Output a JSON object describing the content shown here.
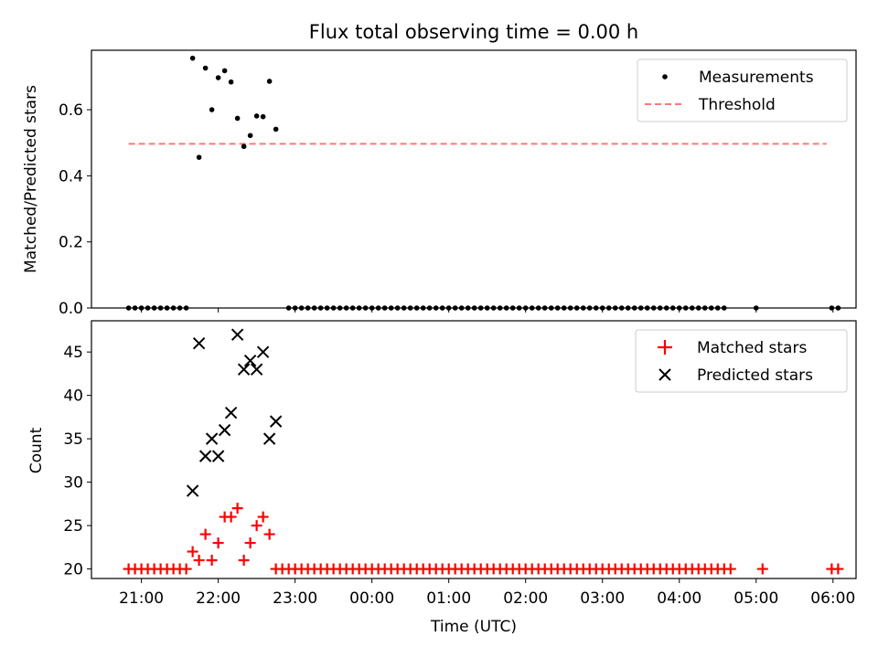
{
  "title": "Flux total observing time = 0.00 h",
  "xlabel": "Time (UTC)",
  "x_ticks": [
    "21:00",
    "22:00",
    "23:00",
    "00:00",
    "01:00",
    "02:00",
    "03:00",
    "04:00",
    "05:00",
    "06:00"
  ],
  "chart_data": [
    {
      "type": "scatter",
      "ylabel": "Matched/Predicted stars",
      "ylim": [
        0,
        0.78
      ],
      "y_ticks": [
        "0.0",
        "0.2",
        "0.4",
        "0.6"
      ],
      "y_tick_values": [
        0,
        0.2,
        0.4,
        0.6
      ],
      "legend_position": "top-right",
      "legend": [
        "Measurements",
        "Threshold"
      ],
      "threshold": {
        "name": "Threshold",
        "value": 0.497,
        "x_range": [
          "20:50",
          "05:55"
        ],
        "color": "#ff7777",
        "style": "dashed"
      },
      "series": [
        {
          "name": "Measurements",
          "color": "#000000",
          "points": [
            [
              "20:50",
              0
            ],
            [
              "20:55",
              0
            ],
            [
              "21:00",
              0
            ],
            [
              "21:05",
              0
            ],
            [
              "21:10",
              0
            ],
            [
              "21:15",
              0
            ],
            [
              "21:20",
              0
            ],
            [
              "21:25",
              0
            ],
            [
              "21:30",
              0
            ],
            [
              "21:35",
              0
            ],
            [
              "21:40",
              0.756
            ],
            [
              "21:45",
              0.456
            ],
            [
              "21:50",
              0.726
            ],
            [
              "21:55",
              0.6
            ],
            [
              "22:00",
              0.697
            ],
            [
              "22:05",
              0.718
            ],
            [
              "22:10",
              0.684
            ],
            [
              "22:15",
              0.574
            ],
            [
              "22:20",
              0.489
            ],
            [
              "22:25",
              0.522
            ],
            [
              "22:30",
              0.581
            ],
            [
              "22:35",
              0.579
            ],
            [
              "22:40",
              0.686
            ],
            [
              "22:45",
              0.541
            ],
            [
              "22:55",
              0
            ],
            [
              "23:00",
              0
            ],
            [
              "23:05",
              0
            ],
            [
              "23:10",
              0
            ],
            [
              "23:15",
              0
            ],
            [
              "23:20",
              0
            ],
            [
              "23:25",
              0
            ],
            [
              "23:30",
              0
            ],
            [
              "23:35",
              0
            ],
            [
              "23:40",
              0
            ],
            [
              "23:45",
              0
            ],
            [
              "23:50",
              0
            ],
            [
              "23:55",
              0
            ],
            [
              "00:00",
              0
            ],
            [
              "00:05",
              0
            ],
            [
              "00:10",
              0
            ],
            [
              "00:15",
              0
            ],
            [
              "00:20",
              0
            ],
            [
              "00:25",
              0
            ],
            [
              "00:30",
              0
            ],
            [
              "00:35",
              0
            ],
            [
              "00:40",
              0
            ],
            [
              "00:45",
              0
            ],
            [
              "00:50",
              0
            ],
            [
              "00:55",
              0
            ],
            [
              "01:00",
              0
            ],
            [
              "01:05",
              0
            ],
            [
              "01:10",
              0
            ],
            [
              "01:15",
              0
            ],
            [
              "01:20",
              0
            ],
            [
              "01:25",
              0
            ],
            [
              "01:30",
              0
            ],
            [
              "01:35",
              0
            ],
            [
              "01:40",
              0
            ],
            [
              "01:45",
              0
            ],
            [
              "01:50",
              0
            ],
            [
              "01:55",
              0
            ],
            [
              "02:00",
              0
            ],
            [
              "02:05",
              0
            ],
            [
              "02:10",
              0
            ],
            [
              "02:15",
              0
            ],
            [
              "02:20",
              0
            ],
            [
              "02:25",
              0
            ],
            [
              "02:30",
              0
            ],
            [
              "02:35",
              0
            ],
            [
              "02:40",
              0
            ],
            [
              "02:45",
              0
            ],
            [
              "02:50",
              0
            ],
            [
              "02:55",
              0
            ],
            [
              "03:00",
              0
            ],
            [
              "03:05",
              0
            ],
            [
              "03:10",
              0
            ],
            [
              "03:15",
              0
            ],
            [
              "03:20",
              0
            ],
            [
              "03:25",
              0
            ],
            [
              "03:30",
              0
            ],
            [
              "03:35",
              0
            ],
            [
              "03:40",
              0
            ],
            [
              "03:45",
              0
            ],
            [
              "03:50",
              0
            ],
            [
              "03:55",
              0
            ],
            [
              "04:00",
              0
            ],
            [
              "04:05",
              0
            ],
            [
              "04:10",
              0
            ],
            [
              "04:15",
              0
            ],
            [
              "04:20",
              0
            ],
            [
              "04:25",
              0
            ],
            [
              "04:30",
              0
            ],
            [
              "04:35",
              0
            ],
            [
              "05:00",
              0
            ],
            [
              "05:59",
              0
            ],
            [
              "06:04",
              0
            ]
          ]
        }
      ]
    },
    {
      "type": "scatter",
      "ylabel": "Count",
      "ylim": [
        18.9,
        48.6
      ],
      "y_ticks": [
        "20",
        "25",
        "30",
        "35",
        "40",
        "45"
      ],
      "y_tick_values": [
        20,
        25,
        30,
        35,
        40,
        45
      ],
      "legend_position": "top-right",
      "legend": [
        "Matched stars",
        "Predicted stars"
      ],
      "series": [
        {
          "name": "Matched stars",
          "marker": "plus",
          "color": "#ff0000",
          "points": [
            [
              "20:50",
              20
            ],
            [
              "20:55",
              20
            ],
            [
              "21:00",
              20
            ],
            [
              "21:05",
              20
            ],
            [
              "21:10",
              20
            ],
            [
              "21:15",
              20
            ],
            [
              "21:20",
              20
            ],
            [
              "21:25",
              20
            ],
            [
              "21:30",
              20
            ],
            [
              "21:35",
              20
            ],
            [
              "21:40",
              22
            ],
            [
              "21:45",
              21
            ],
            [
              "21:50",
              24
            ],
            [
              "21:55",
              21
            ],
            [
              "22:00",
              23
            ],
            [
              "22:05",
              26
            ],
            [
              "22:10",
              26
            ],
            [
              "22:15",
              27
            ],
            [
              "22:20",
              21
            ],
            [
              "22:25",
              23
            ],
            [
              "22:30",
              25
            ],
            [
              "22:35",
              26
            ],
            [
              "22:40",
              24
            ],
            [
              "22:45",
              20
            ],
            [
              "22:50",
              20
            ],
            [
              "22:55",
              20
            ],
            [
              "23:00",
              20
            ],
            [
              "23:05",
              20
            ],
            [
              "23:10",
              20
            ],
            [
              "23:15",
              20
            ],
            [
              "23:20",
              20
            ],
            [
              "23:25",
              20
            ],
            [
              "23:30",
              20
            ],
            [
              "23:35",
              20
            ],
            [
              "23:40",
              20
            ],
            [
              "23:45",
              20
            ],
            [
              "23:50",
              20
            ],
            [
              "23:55",
              20
            ],
            [
              "00:00",
              20
            ],
            [
              "00:05",
              20
            ],
            [
              "00:10",
              20
            ],
            [
              "00:15",
              20
            ],
            [
              "00:20",
              20
            ],
            [
              "00:25",
              20
            ],
            [
              "00:30",
              20
            ],
            [
              "00:35",
              20
            ],
            [
              "00:40",
              20
            ],
            [
              "00:45",
              20
            ],
            [
              "00:50",
              20
            ],
            [
              "00:55",
              20
            ],
            [
              "01:00",
              20
            ],
            [
              "01:05",
              20
            ],
            [
              "01:10",
              20
            ],
            [
              "01:15",
              20
            ],
            [
              "01:20",
              20
            ],
            [
              "01:25",
              20
            ],
            [
              "01:30",
              20
            ],
            [
              "01:35",
              20
            ],
            [
              "01:40",
              20
            ],
            [
              "01:45",
              20
            ],
            [
              "01:50",
              20
            ],
            [
              "01:55",
              20
            ],
            [
              "02:00",
              20
            ],
            [
              "02:05",
              20
            ],
            [
              "02:10",
              20
            ],
            [
              "02:15",
              20
            ],
            [
              "02:20",
              20
            ],
            [
              "02:25",
              20
            ],
            [
              "02:30",
              20
            ],
            [
              "02:35",
              20
            ],
            [
              "02:40",
              20
            ],
            [
              "02:45",
              20
            ],
            [
              "02:50",
              20
            ],
            [
              "02:55",
              20
            ],
            [
              "03:00",
              20
            ],
            [
              "03:05",
              20
            ],
            [
              "03:10",
              20
            ],
            [
              "03:15",
              20
            ],
            [
              "03:20",
              20
            ],
            [
              "03:25",
              20
            ],
            [
              "03:30",
              20
            ],
            [
              "03:35",
              20
            ],
            [
              "03:40",
              20
            ],
            [
              "03:45",
              20
            ],
            [
              "03:50",
              20
            ],
            [
              "03:55",
              20
            ],
            [
              "04:00",
              20
            ],
            [
              "04:05",
              20
            ],
            [
              "04:10",
              20
            ],
            [
              "04:15",
              20
            ],
            [
              "04:20",
              20
            ],
            [
              "04:25",
              20
            ],
            [
              "04:30",
              20
            ],
            [
              "04:35",
              20
            ],
            [
              "04:40",
              20
            ],
            [
              "05:05",
              20
            ],
            [
              "05:59",
              20
            ],
            [
              "06:04",
              20
            ]
          ]
        },
        {
          "name": "Predicted stars",
          "marker": "x",
          "color": "#000000",
          "points": [
            [
              "21:40",
              29
            ],
            [
              "21:45",
              46
            ],
            [
              "21:50",
              33
            ],
            [
              "21:55",
              35
            ],
            [
              "22:00",
              33
            ],
            [
              "22:05",
              36
            ],
            [
              "22:10",
              38
            ],
            [
              "22:15",
              47
            ],
            [
              "22:20",
              43
            ],
            [
              "22:25",
              44
            ],
            [
              "22:30",
              43
            ],
            [
              "22:35",
              45
            ],
            [
              "22:40",
              35
            ],
            [
              "22:45",
              37
            ]
          ]
        }
      ]
    }
  ]
}
